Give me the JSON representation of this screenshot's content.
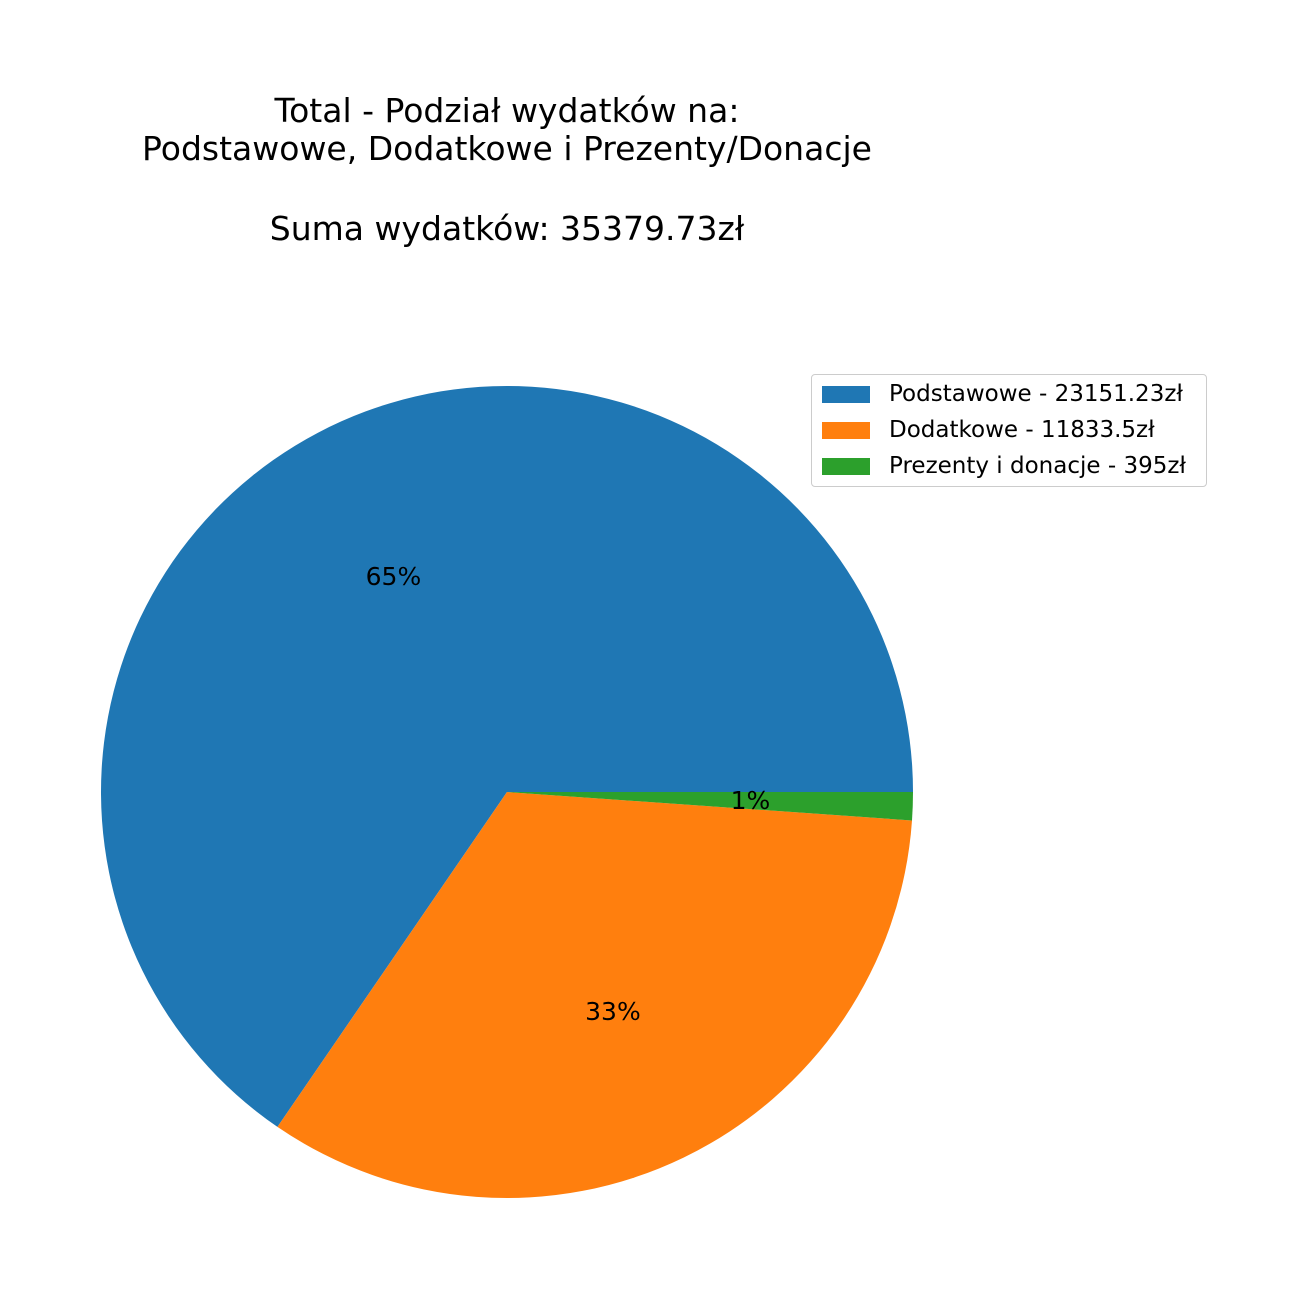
{
  "chart_data": {
    "type": "pie",
    "title_lines": [
      "Total - Podział wydatków na:",
      "Podstawowe, Dodatkowe i Prezenty/Donacje"
    ],
    "subtitle": "Suma wydatków: 35379.73zł",
    "slices": [
      {
        "label": "Podstawowe - 23151.23zł",
        "value": 23151.23,
        "pct_label": "65%",
        "color": "#1f77b4"
      },
      {
        "label": "Dodatkowe - 11833.5zł",
        "value": 11833.5,
        "pct_label": "33%",
        "color": "#ff7f0e"
      },
      {
        "label": "Prezenty i donacje - 395zł",
        "value": 395,
        "pct_label": "1%",
        "color": "#2ca02c"
      }
    ],
    "start_angle_deg": 0,
    "direction": "counterclockwise",
    "legend_position": "top-right"
  }
}
